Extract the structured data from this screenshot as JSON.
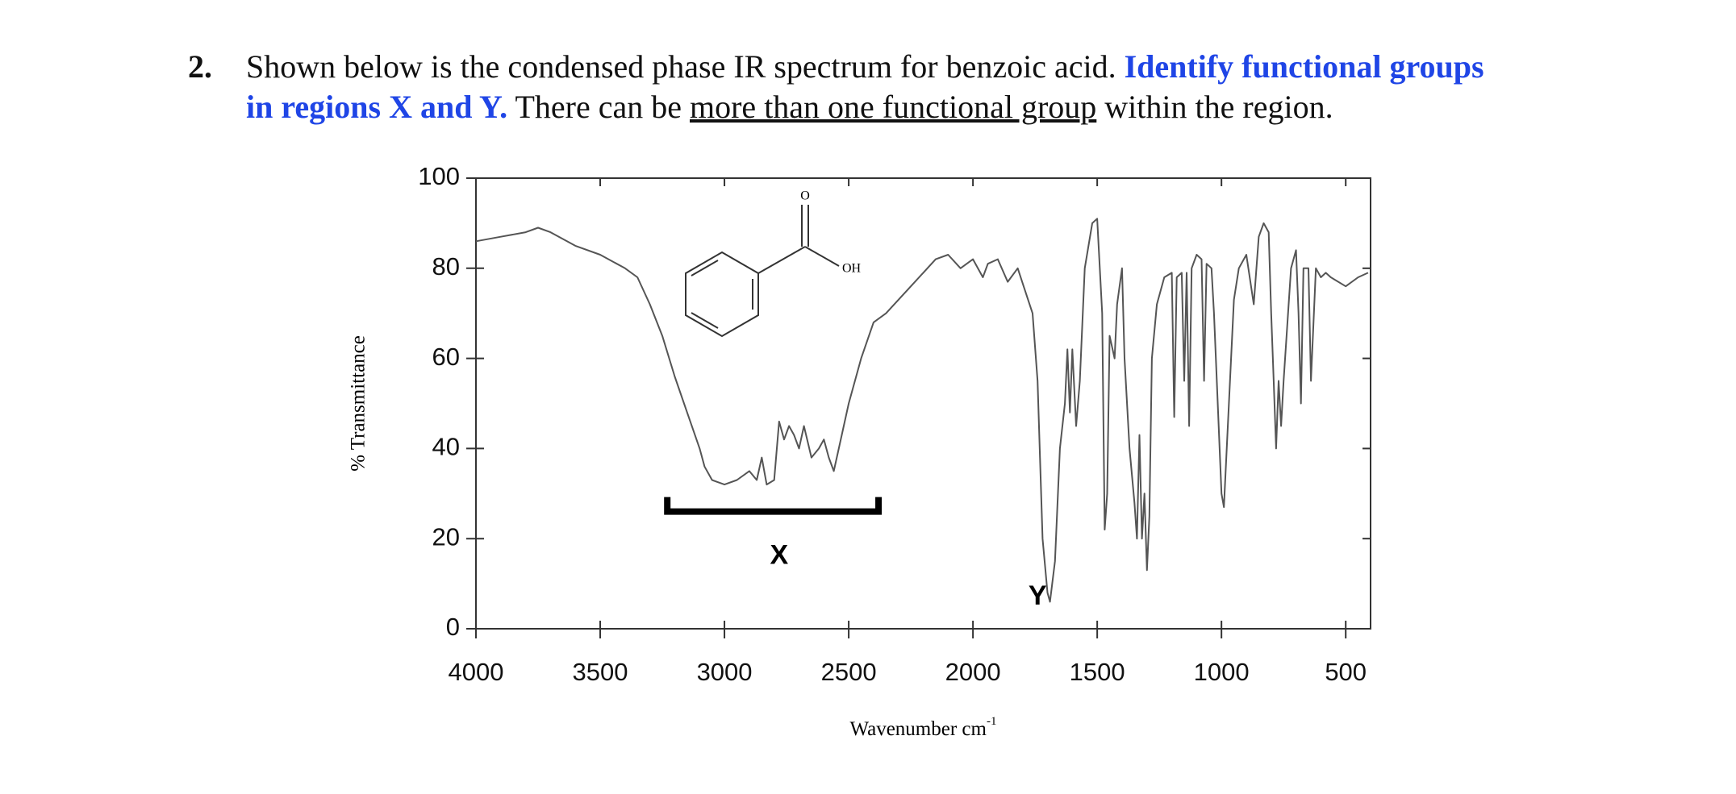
{
  "question": {
    "number": "2.",
    "lines": [
      [
        {
          "text": "Shown below is the condensed phase IR spectrum for benzoic acid. ",
          "style": "plain"
        },
        {
          "text": "Identify functional groups",
          "style": "blue"
        }
      ],
      [
        {
          "text": "in regions X and Y.",
          "style": "blue"
        },
        {
          "text": " There can be ",
          "style": "plain"
        },
        {
          "text": "more than one functional group",
          "style": "under"
        },
        {
          "text": " within the region.",
          "style": "plain"
        }
      ]
    ]
  },
  "molecule_labels": [
    "O",
    "OH"
  ],
  "chart_data": {
    "type": "line",
    "x_label": {
      "text": "Wavenumber cm",
      "superscript": "-1"
    },
    "y_label": "% Transmittance",
    "xlim": [
      4000,
      400
    ],
    "ylim": [
      0,
      100
    ],
    "xticks": [
      4000,
      3500,
      3000,
      2500,
      2000,
      1500,
      1000,
      500
    ],
    "yticks": [
      0,
      20,
      40,
      60,
      80,
      100
    ],
    "color": "#555555",
    "annotations": [
      {
        "text": "X",
        "x": 2780,
        "y": 16,
        "span": [
          3230,
          2380
        ],
        "span_y": 26
      },
      {
        "text": "Y",
        "x": 1740,
        "y": 7
      }
    ],
    "x": [
      4000,
      3900,
      3800,
      3750,
      3700,
      3600,
      3500,
      3400,
      3350,
      3300,
      3250,
      3200,
      3150,
      3100,
      3080,
      3050,
      3000,
      2950,
      2900,
      2870,
      2850,
      2830,
      2800,
      2780,
      2760,
      2740,
      2720,
      2700,
      2680,
      2650,
      2620,
      2600,
      2580,
      2560,
      2540,
      2500,
      2450,
      2400,
      2350,
      2300,
      2250,
      2200,
      2150,
      2100,
      2050,
      2000,
      1960,
      1940,
      1900,
      1860,
      1820,
      1790,
      1760,
      1740,
      1720,
      1700,
      1690,
      1670,
      1650,
      1630,
      1620,
      1610,
      1600,
      1585,
      1570,
      1550,
      1520,
      1500,
      1480,
      1470,
      1460,
      1450,
      1430,
      1420,
      1400,
      1390,
      1370,
      1350,
      1340,
      1330,
      1320,
      1310,
      1300,
      1290,
      1280,
      1260,
      1230,
      1200,
      1190,
      1180,
      1160,
      1150,
      1140,
      1130,
      1120,
      1100,
      1080,
      1070,
      1060,
      1040,
      1030,
      1000,
      990,
      970,
      950,
      930,
      900,
      870,
      850,
      830,
      810,
      800,
      790,
      780,
      770,
      760,
      750,
      720,
      700,
      690,
      680,
      670,
      650,
      640,
      620,
      600,
      580,
      560,
      500,
      450,
      410
    ],
    "values": [
      86,
      87,
      88,
      89,
      88,
      85,
      83,
      80,
      78,
      72,
      65,
      56,
      48,
      40,
      36,
      33,
      32,
      33,
      35,
      33,
      38,
      32,
      33,
      46,
      42,
      45,
      43,
      40,
      45,
      38,
      40,
      42,
      38,
      35,
      40,
      50,
      60,
      68,
      70,
      73,
      76,
      79,
      82,
      83,
      80,
      82,
      78,
      81,
      82,
      77,
      80,
      75,
      70,
      55,
      20,
      8,
      6,
      15,
      40,
      50,
      62,
      48,
      62,
      45,
      55,
      80,
      90,
      91,
      70,
      22,
      30,
      65,
      60,
      72,
      80,
      60,
      40,
      28,
      20,
      43,
      20,
      30,
      13,
      25,
      60,
      72,
      78,
      79,
      47,
      78,
      79,
      55,
      79,
      45,
      80,
      83,
      82,
      55,
      81,
      80,
      70,
      30,
      27,
      50,
      73,
      80,
      83,
      72,
      87,
      90,
      88,
      70,
      55,
      40,
      55,
      45,
      55,
      80,
      84,
      70,
      50,
      80,
      80,
      55,
      80,
      78,
      79,
      78,
      76,
      78,
      79
    ]
  }
}
